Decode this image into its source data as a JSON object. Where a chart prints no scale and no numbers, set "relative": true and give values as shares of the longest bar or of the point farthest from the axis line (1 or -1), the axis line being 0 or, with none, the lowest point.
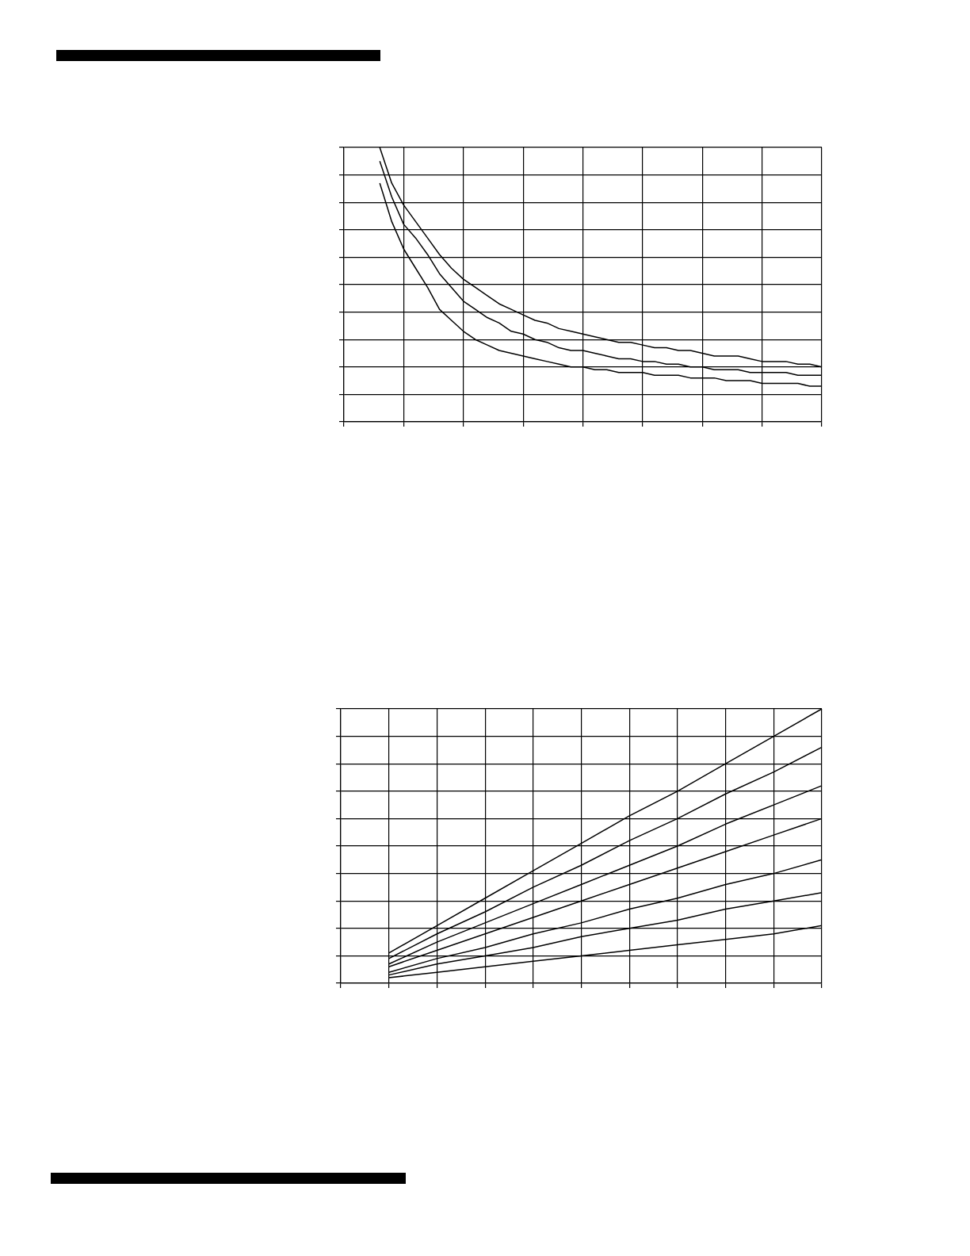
{
  "chart_data": [
    {
      "type": "line",
      "relative": true,
      "grid": true,
      "legend": false,
      "categories": [
        null,
        null,
        null,
        null,
        null,
        null,
        null,
        null,
        null,
        null,
        null,
        null,
        null,
        null,
        null,
        null,
        null,
        null,
        null,
        null,
        null,
        null,
        null,
        null,
        null,
        null,
        null,
        null,
        null,
        null,
        null,
        null,
        null,
        null,
        null,
        null,
        null,
        null,
        null,
        null,
        null
      ],
      "series": [
        {
          "color": "#000000",
          "values": [
            null,
            null,
            null,
            1,
            0.87,
            0.79,
            0.73,
            0.67,
            0.61,
            0.56,
            0.52,
            0.49,
            0.46,
            0.43,
            0.41,
            0.39,
            0.37,
            0.36,
            0.34,
            0.33,
            0.32,
            0.31,
            0.3,
            0.29,
            0.29,
            0.28,
            0.27,
            0.27,
            0.26,
            0.26,
            0.25,
            0.24,
            0.24,
            0.24,
            0.23,
            0.22,
            0.22,
            0.22,
            0.21,
            0.21,
            0.2
          ]
        },
        {
          "color": "#000000",
          "values": [
            null,
            null,
            null,
            0.95,
            0.82,
            0.72,
            0.67,
            0.61,
            0.54,
            0.49,
            0.44,
            0.41,
            0.38,
            0.36,
            0.33,
            0.32,
            0.3,
            0.29,
            0.27,
            0.26,
            0.26,
            0.25,
            0.24,
            0.23,
            0.23,
            0.22,
            0.22,
            0.21,
            0.21,
            0.2,
            0.2,
            0.19,
            0.19,
            0.19,
            0.18,
            0.18,
            0.18,
            0.18,
            0.17,
            0.17,
            0.17
          ]
        },
        {
          "color": "#000000",
          "values": [
            null,
            null,
            null,
            0.87,
            0.73,
            0.63,
            0.56,
            0.49,
            0.41,
            0.37,
            0.33,
            0.3,
            0.28,
            0.26,
            0.25,
            0.24,
            0.23,
            0.22,
            0.21,
            0.2,
            0.2,
            0.19,
            0.19,
            0.18,
            0.18,
            0.18,
            0.17,
            0.17,
            0.17,
            0.16,
            0.16,
            0.16,
            0.15,
            0.15,
            0.15,
            0.14,
            0.14,
            0.14,
            0.14,
            0.13,
            0.13
          ]
        }
      ]
    },
    {
      "type": "line",
      "relative": true,
      "grid": true,
      "legend": false,
      "categories": [
        null,
        null,
        null,
        null,
        null,
        null,
        null,
        null,
        null,
        null,
        null
      ],
      "series": [
        {
          "color": "#000000",
          "values": [
            null,
            0.11,
            0.21,
            0.31,
            0.41,
            0.51,
            0.61,
            0.7,
            0.8,
            0.9,
            1
          ]
        },
        {
          "color": "#000000",
          "values": [
            null,
            0.09,
            0.18,
            0.26,
            0.35,
            0.43,
            0.52,
            0.6,
            0.69,
            0.77,
            0.86
          ]
        },
        {
          "color": "#000000",
          "values": [
            null,
            0.07,
            0.15,
            0.22,
            0.29,
            0.36,
            0.43,
            0.5,
            0.58,
            0.65,
            0.72
          ]
        },
        {
          "color": "#000000",
          "values": [
            null,
            0.06,
            0.12,
            0.18,
            0.24,
            0.3,
            0.36,
            0.42,
            0.48,
            0.54,
            0.6
          ]
        },
        {
          "color": "#000000",
          "values": [
            null,
            0.04,
            0.09,
            0.13,
            0.18,
            0.22,
            0.27,
            0.31,
            0.36,
            0.4,
            0.45
          ]
        },
        {
          "color": "#000000",
          "values": [
            null,
            0.03,
            0.07,
            0.1,
            0.13,
            0.17,
            0.2,
            0.23,
            0.27,
            0.3,
            0.33
          ]
        },
        {
          "color": "#000000",
          "values": [
            null,
            0.02,
            0.04,
            0.06,
            0.08,
            0.1,
            0.12,
            0.14,
            0.16,
            0.18,
            0.21
          ]
        }
      ]
    }
  ]
}
